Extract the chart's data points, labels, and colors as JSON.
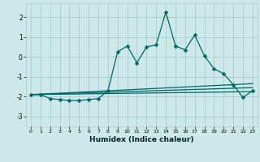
{
  "xlabel": "Humidex (Indice chaleur)",
  "bg_color": "#cce8e8",
  "grid_color": "#aacccc",
  "line_color": "#006666",
  "xlim": [
    -0.5,
    23.5
  ],
  "ylim": [
    -3.5,
    2.7
  ],
  "yticks": [
    -3,
    -2,
    -1,
    0,
    1,
    2
  ],
  "xticks": [
    0,
    1,
    2,
    3,
    4,
    5,
    6,
    7,
    8,
    9,
    10,
    11,
    12,
    13,
    14,
    15,
    16,
    17,
    18,
    19,
    20,
    21,
    22,
    23
  ],
  "series1_x": [
    0,
    1,
    2,
    3,
    4,
    5,
    6,
    7,
    8,
    9,
    10,
    11,
    12,
    13,
    14,
    15,
    16,
    17,
    18,
    19,
    20,
    21,
    22,
    23
  ],
  "series1_y": [
    -1.9,
    -1.9,
    -2.1,
    -2.15,
    -2.2,
    -2.2,
    -2.15,
    -2.1,
    -1.7,
    0.25,
    0.55,
    -0.3,
    0.5,
    0.6,
    2.25,
    0.55,
    0.35,
    1.1,
    0.05,
    -0.6,
    -0.85,
    -1.4,
    -2.05,
    -1.7
  ],
  "series2_x": [
    0,
    23
  ],
  "series2_y": [
    -1.9,
    -1.75
  ],
  "series3_x": [
    0,
    23
  ],
  "series3_y": [
    -1.9,
    -1.55
  ],
  "series4_x": [
    0,
    23
  ],
  "series4_y": [
    -1.9,
    -1.35
  ],
  "marker": "D",
  "markersize": 2.5,
  "linewidth": 0.9
}
